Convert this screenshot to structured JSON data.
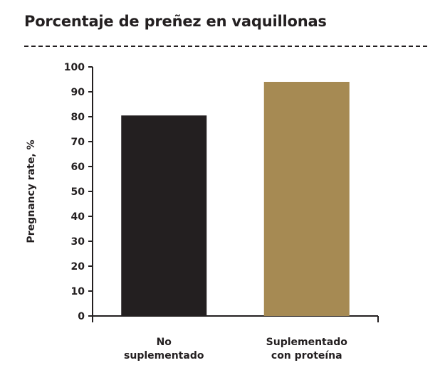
{
  "chart_data": {
    "type": "bar",
    "title": "Porcentaje de preñez en vaquillonas",
    "ylabel": "Pregnancy rate, %",
    "xlabel": "",
    "categories": [
      [
        "No",
        "suplementado"
      ],
      [
        "Suplementado",
        "con proteína"
      ]
    ],
    "values": [
      80.5,
      94
    ],
    "bar_colors": [
      "#231f20",
      "#a68a53"
    ],
    "ylim": [
      0,
      100
    ],
    "yticks": [
      0,
      10,
      20,
      30,
      40,
      50,
      60,
      70,
      80,
      90,
      100
    ],
    "grid": false,
    "legend": "none"
  }
}
